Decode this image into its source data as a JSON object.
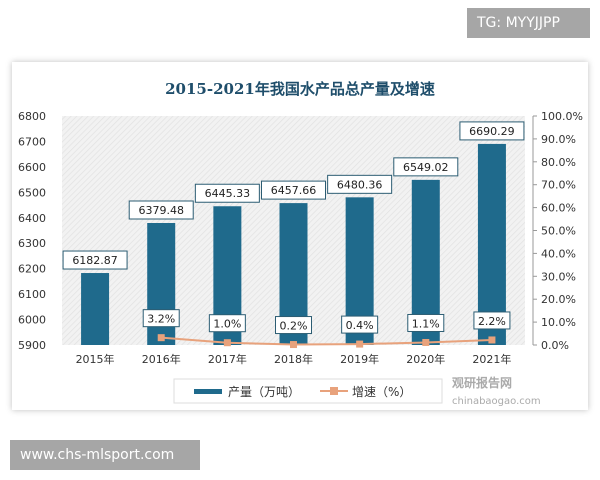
{
  "watermark_top": "TG: MYYJJPP",
  "watermark_bottom": "www.chs-mlsport.com",
  "logo": {
    "cn": "观研报告网",
    "en": "chinabaogao.com"
  },
  "chart_data": {
    "type": "bar+line",
    "title": "2015-2021年我国水产品总产量及增速",
    "categories": [
      "2015年",
      "2016年",
      "2017年",
      "2018年",
      "2019年",
      "2020年",
      "2021年"
    ],
    "series": [
      {
        "name": "产量（万吨）",
        "type": "bar",
        "axis": "left",
        "color": "#1f6a8c",
        "values": [
          6182.87,
          6379.48,
          6445.33,
          6457.66,
          6480.36,
          6549.02,
          6690.29
        ],
        "labels": [
          "6182.87",
          "6379.48",
          "6445.33",
          "6457.66",
          "6480.36",
          "6549.02",
          "6690.29"
        ]
      },
      {
        "name": "增速（%）",
        "type": "line",
        "axis": "right",
        "color": "#e8a27c",
        "values": [
          null,
          3.2,
          1.0,
          0.2,
          0.4,
          1.1,
          2.2
        ],
        "labels": [
          "",
          "3.2%",
          "1.0%",
          "0.2%",
          "0.4%",
          "1.1%",
          "2.2%"
        ]
      }
    ],
    "y_left": {
      "range": [
        5900,
        6800
      ],
      "ticks": [
        "5900",
        "6000",
        "6100",
        "6200",
        "6300",
        "6400",
        "6500",
        "6600",
        "6700",
        "6800"
      ]
    },
    "y_right": {
      "range": [
        0,
        100
      ],
      "ticks": [
        "0.0%",
        "10.0%",
        "20.0%",
        "30.0%",
        "40.0%",
        "50.0%",
        "60.0%",
        "70.0%",
        "80.0%",
        "90.0%",
        "100.0%"
      ]
    },
    "legend": "bottom",
    "grid": false
  }
}
